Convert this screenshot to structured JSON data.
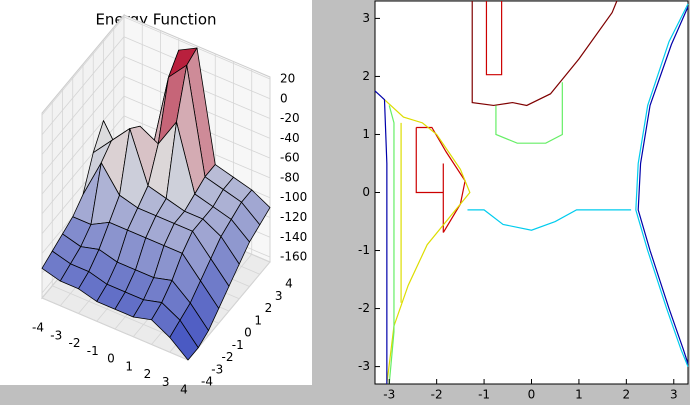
{
  "chart_data": [
    {
      "type": "surface3d",
      "title": "Energy Function",
      "x": [
        -4,
        -3,
        -2,
        -1,
        0,
        1,
        2,
        3,
        4
      ],
      "y": [
        -4,
        -3,
        -2,
        -1,
        0,
        1,
        2,
        3,
        4
      ],
      "z": [
        [
          -135,
          -130,
          -125,
          -120,
          -110,
          -80,
          -60,
          -100,
          -110
        ],
        [
          -140,
          -135,
          -130,
          -120,
          -70,
          -60,
          -90,
          -100,
          -105
        ],
        [
          -140,
          -135,
          -125,
          -110,
          -95,
          -40,
          -50,
          -95,
          -100
        ],
        [
          -145,
          -140,
          -130,
          -110,
          -100,
          -90,
          -60,
          -5,
          10
        ],
        [
          -145,
          -140,
          -130,
          -110,
          -100,
          -95,
          -30,
          15,
          20
        ],
        [
          -145,
          -140,
          -130,
          -110,
          -100,
          -100,
          -95,
          -90,
          -90
        ],
        [
          -140,
          -135,
          -125,
          -110,
          -100,
          -100,
          -100,
          -95,
          -95
        ],
        [
          -150,
          -145,
          -140,
          -130,
          -120,
          -110,
          -105,
          -100,
          -100
        ],
        [
          -165,
          -165,
          -160,
          -150,
          -140,
          -130,
          -120,
          -115,
          -110
        ]
      ],
      "xlim": [
        -4,
        4
      ],
      "ylim": [
        -4,
        4
      ],
      "zlim": [
        -165,
        22
      ],
      "xticks": [
        -4,
        -3,
        -2,
        -1,
        0,
        1,
        2,
        3,
        4
      ],
      "yticks": [
        -4,
        -3,
        -2,
        -1,
        0,
        1,
        2,
        3,
        4
      ],
      "zticks": [
        20,
        0,
        -20,
        -40,
        -60,
        -80,
        -100,
        -120,
        -140,
        -160
      ],
      "colormap": "coolwarm"
    },
    {
      "type": "contour",
      "xlim": [
        -3.3,
        3.3
      ],
      "ylim": [
        -3.3,
        3.3
      ],
      "xticks": [
        -3,
        -2,
        -1,
        0,
        1,
        2,
        3
      ],
      "yticks": [
        -3,
        -2,
        -1,
        0,
        1,
        2,
        3
      ],
      "series": [
        {
          "color": "#7f0000",
          "x": [
            -1.25,
            -1.25,
            -0.8,
            -0.4,
            -0.1,
            0.4,
            1.0,
            1.7,
            1.8
          ],
          "y": [
            3.3,
            1.55,
            1.5,
            1.55,
            1.5,
            1.7,
            2.3,
            3.1,
            3.3
          ]
        },
        {
          "color": "#cc0000",
          "x": [
            -0.95,
            -0.95,
            -0.63,
            -0.63
          ],
          "y": [
            3.3,
            2.03,
            2.03,
            3.3
          ]
        },
        {
          "color": "#cc0000",
          "x": [
            -2.43,
            -2.1,
            -1.8,
            -1.4,
            -1.5,
            -1.86
          ],
          "y": [
            1.12,
            1.12,
            0.7,
            0.2,
            -0.2,
            -0.69
          ]
        },
        {
          "color": "#cc0000",
          "x": [
            -2.43,
            -2.43,
            -1.86,
            -1.86,
            -1.86
          ],
          "y": [
            1.12,
            0.0,
            0.0,
            0.5,
            -0.69
          ]
        },
        {
          "color": "#dddd00",
          "x": [
            -3.1,
            -2.7,
            -2.3,
            -2.0,
            -1.5,
            -1.3,
            -1.6,
            -2.2,
            -2.6,
            -2.9,
            -3.05
          ],
          "y": [
            1.6,
            1.3,
            1.2,
            1.0,
            0.4,
            0.0,
            -0.3,
            -0.9,
            -1.6,
            -2.3,
            -3.3
          ]
        },
        {
          "color": "#dddd00",
          "x": [
            -2.75,
            -2.75
          ],
          "y": [
            1.2,
            -1.9
          ]
        },
        {
          "color": "#66ee66",
          "x": [
            -0.75,
            -0.75,
            -0.3,
            0.3,
            0.65,
            0.65
          ],
          "y": [
            1.5,
            1.0,
            0.85,
            0.85,
            1.0,
            1.9
          ]
        },
        {
          "color": "#66ee66",
          "x": [
            -3.0,
            -2.9,
            -2.9,
            -3.0
          ],
          "y": [
            1.5,
            1.2,
            -2.4,
            -3.3
          ]
        },
        {
          "color": "#00ccee",
          "x": [
            -1.35,
            -1.0,
            -0.6,
            0.0,
            0.5,
            0.95,
            2.1
          ],
          "y": [
            -0.3,
            -0.3,
            -0.55,
            -0.65,
            -0.5,
            -0.3,
            -0.3
          ]
        },
        {
          "color": "#00ccee",
          "x": [
            3.3,
            2.9,
            2.45,
            2.25,
            2.2,
            2.45,
            2.85,
            3.15,
            3.3
          ],
          "y": [
            3.25,
            2.6,
            1.5,
            0.5,
            -0.3,
            -1.0,
            -2.0,
            -2.7,
            -3.0
          ]
        },
        {
          "color": "#0000aa",
          "x": [
            -3.3,
            -3.1,
            -3.05,
            -3.05
          ],
          "y": [
            1.75,
            1.6,
            0.5,
            -3.3
          ]
        },
        {
          "color": "#0000aa",
          "x": [
            3.3,
            2.95,
            2.5,
            2.3,
            2.25,
            2.5,
            2.9,
            3.2,
            3.3
          ],
          "y": [
            3.2,
            2.55,
            1.5,
            0.5,
            -0.3,
            -1.0,
            -2.0,
            -2.7,
            -2.95
          ]
        }
      ]
    }
  ]
}
